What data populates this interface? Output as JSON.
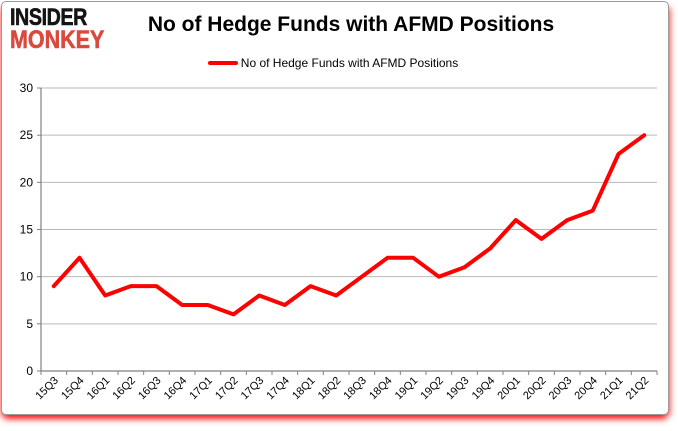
{
  "logo": {
    "line1": "INSIDER",
    "line2": "MONKEY"
  },
  "header": {
    "title": "No of Hedge Funds with AFMD Positions"
  },
  "legend": {
    "label": "No of Hedge Funds with AFMD Positions"
  },
  "colors": {
    "line": "#ff0000",
    "logo_red": "#d94a3d",
    "grid": "#b9b9b9",
    "axis": "#808080",
    "text": "#000000"
  },
  "chart_data": {
    "type": "line",
    "title": "No of Hedge Funds with AFMD Positions",
    "categories": [
      "15Q3",
      "15Q4",
      "16Q1",
      "16Q2",
      "16Q3",
      "16Q4",
      "17Q1",
      "17Q2",
      "17Q3",
      "17Q4",
      "18Q1",
      "18Q2",
      "18Q3",
      "18Q4",
      "19Q1",
      "19Q2",
      "19Q3",
      "19Q4",
      "20Q1",
      "20Q2",
      "20Q3",
      "20Q4",
      "21Q1",
      "21Q2"
    ],
    "series": [
      {
        "name": "No of Hedge Funds with AFMD Positions",
        "color": "#ff0000",
        "values": [
          9,
          12,
          8,
          9,
          9,
          7,
          7,
          6,
          8,
          7,
          9,
          8,
          10,
          12,
          12,
          10,
          11,
          13,
          16,
          14,
          16,
          17,
          23,
          25
        ]
      }
    ],
    "xlabel": "",
    "ylabel": "",
    "ylim": [
      0,
      30
    ],
    "yticks": [
      0,
      5,
      10,
      15,
      20,
      25,
      30
    ],
    "grid": "horizontal",
    "legend_position": "top-center"
  }
}
